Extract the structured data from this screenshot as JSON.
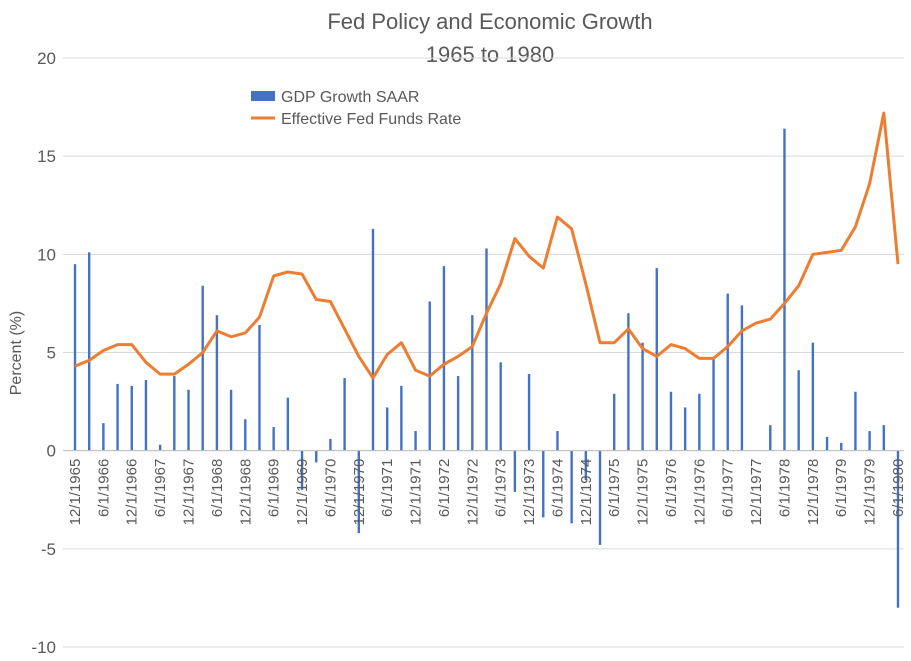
{
  "chart_data": {
    "type": "bar",
    "title": "Fed Policy and Economic Growth",
    "subtitle": "1965 to 1980",
    "ylabel": "Percent (%)",
    "ylim": [
      -10,
      20
    ],
    "yticks": [
      20,
      15,
      10,
      5,
      0,
      -5,
      -10
    ],
    "grid": true,
    "legend_position": "top-left",
    "x": [
      "12/1/1965",
      "3/1/1966",
      "6/1/1966",
      "9/1/1966",
      "12/1/1966",
      "3/1/1967",
      "6/1/1967",
      "9/1/1967",
      "12/1/1967",
      "3/1/1968",
      "6/1/1968",
      "9/1/1968",
      "12/1/1968",
      "3/1/1969",
      "6/1/1969",
      "9/1/1969",
      "12/1/1969",
      "3/1/1970",
      "6/1/1970",
      "9/1/1970",
      "12/1/1970",
      "3/1/1971",
      "6/1/1971",
      "9/1/1971",
      "12/1/1971",
      "3/1/1972",
      "6/1/1972",
      "9/1/1972",
      "12/1/1972",
      "3/1/1973",
      "6/1/1973",
      "9/1/1973",
      "12/1/1973",
      "3/1/1974",
      "6/1/1974",
      "9/1/1974",
      "12/1/1974",
      "3/1/1975",
      "6/1/1975",
      "9/1/1975",
      "12/1/1975",
      "3/1/1976",
      "6/1/1976",
      "9/1/1976",
      "12/1/1976",
      "3/1/1977",
      "6/1/1977",
      "9/1/1977",
      "12/1/1977",
      "3/1/1978",
      "6/1/1978",
      "9/1/1978",
      "12/1/1978",
      "3/1/1979",
      "6/1/1979",
      "9/1/1979",
      "12/1/1979",
      "3/1/1980",
      "6/1/1980"
    ],
    "x_tick_labels": [
      "12/1/1965",
      "6/1/1966",
      "12/1/1966",
      "6/1/1967",
      "12/1/1967",
      "6/1/1968",
      "12/1/1968",
      "6/1/1969",
      "12/1/1969",
      "6/1/1970",
      "12/1/1970",
      "6/1/1971",
      "12/1/1971",
      "6/1/1972",
      "12/1/1972",
      "6/1/1973",
      "12/1/1973",
      "6/1/1974",
      "12/1/1974",
      "6/1/1975",
      "12/1/1975",
      "6/1/1976",
      "12/1/1976",
      "6/1/1977",
      "12/1/1977",
      "6/1/1978",
      "12/1/1978",
      "6/1/1979",
      "12/1/1979",
      "6/1/1980"
    ],
    "series": [
      {
        "name": "GDP Growth SAAR",
        "kind": "bar",
        "color": "#4472c4",
        "values": [
          9.5,
          10.1,
          1.4,
          3.4,
          3.3,
          3.6,
          0.3,
          3.8,
          3.1,
          8.4,
          6.9,
          3.1,
          1.6,
          6.4,
          1.2,
          2.7,
          -2.0,
          -0.6,
          0.6,
          3.7,
          -4.2,
          11.3,
          2.2,
          3.3,
          1.0,
          7.6,
          9.4,
          3.8,
          6.9,
          10.3,
          4.5,
          -2.1,
          3.9,
          -3.4,
          1.0,
          -3.7,
          -1.5,
          -4.8,
          2.9,
          7.0,
          5.5,
          9.3,
          3.0,
          2.2,
          2.9,
          4.7,
          8.0,
          7.4,
          0.0,
          1.3,
          16.4,
          4.1,
          5.5,
          0.7,
          0.4,
          3.0,
          1.0,
          1.3,
          -8.0
        ]
      },
      {
        "name": "Effective Fed Funds Rate",
        "kind": "line",
        "color": "#ed7d31",
        "values": [
          4.3,
          4.6,
          5.1,
          5.4,
          5.4,
          4.5,
          3.9,
          3.9,
          4.4,
          5.0,
          6.1,
          5.8,
          6.0,
          6.8,
          8.9,
          9.1,
          9.0,
          7.7,
          7.6,
          6.2,
          4.8,
          3.7,
          4.9,
          5.5,
          4.1,
          3.8,
          4.4,
          4.8,
          5.3,
          7.0,
          8.5,
          10.8,
          9.9,
          9.3,
          11.9,
          11.3,
          8.5,
          5.5,
          5.5,
          6.2,
          5.2,
          4.8,
          5.4,
          5.2,
          4.7,
          4.7,
          5.3,
          6.1,
          6.5,
          6.7,
          7.5,
          8.4,
          10.0,
          10.1,
          10.2,
          11.4,
          13.6,
          17.2,
          9.5
        ]
      }
    ]
  }
}
